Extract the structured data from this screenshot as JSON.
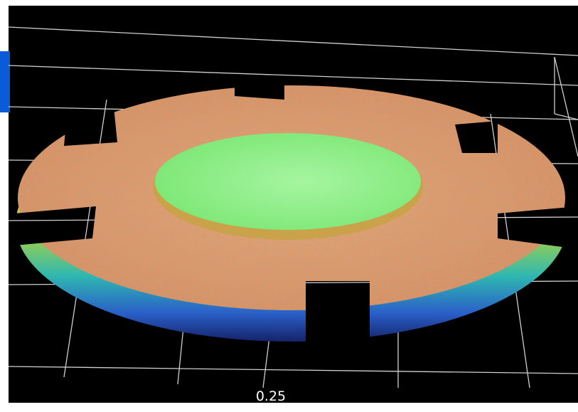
{
  "axis_tick_label": "0.25"
}
